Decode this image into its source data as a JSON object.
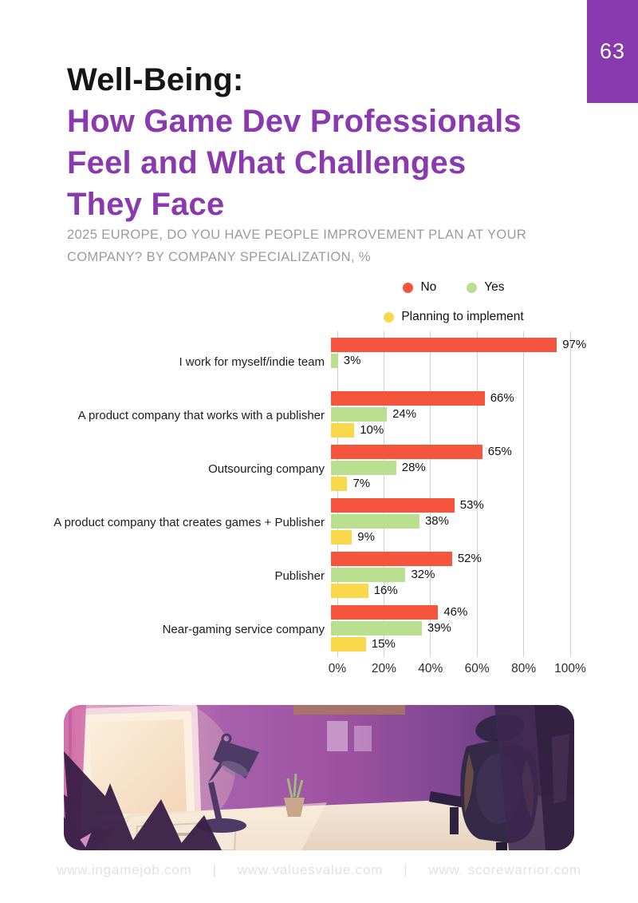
{
  "page": {
    "number": "63"
  },
  "header": {
    "title_black": "Well-Being:",
    "title_purple_lines": [
      "How Game Dev Professionals",
      "Feel and What Challenges",
      "They Face"
    ]
  },
  "subtitle_lines": [
    "2025 EUROPE, DO YOU HAVE PEOPLE IMPROVEMENT PLAN AT YOUR",
    "COMPANY? BY COMPANY SPECIALIZATION, %"
  ],
  "colors": {
    "accent_purple": "#8839AE",
    "no": "#F4553C",
    "yes": "#BADF8E",
    "planning": "#FAD84B",
    "gridline": "#CFCFCF"
  },
  "chart_data": {
    "type": "bar",
    "orientation": "horizontal",
    "title": "Do you have people improvement plan at your company? By company specialization, %",
    "legend": [
      {
        "label": "No",
        "color": "#F4553C"
      },
      {
        "label": "Yes",
        "color": "#BADF8E"
      },
      {
        "label": "Planning to implement",
        "color": "#FAD84B"
      }
    ],
    "legend_position": "top-center",
    "categories": [
      "I work for myself/indie team",
      "A product company that works with a publisher",
      "Outsourcing company",
      "A product company that creates games + Publisher",
      "Publisher",
      "Near-gaming service company"
    ],
    "series": [
      {
        "name": "No",
        "color": "#F4553C",
        "values": [
          97,
          66,
          65,
          53,
          52,
          46
        ]
      },
      {
        "name": "Yes",
        "color": "#BADF8E",
        "values": [
          3,
          24,
          28,
          38,
          32,
          39
        ]
      },
      {
        "name": "Planning to implement",
        "color": "#FAD84B",
        "values": [
          null,
          10,
          7,
          9,
          16,
          15
        ]
      }
    ],
    "xlim": [
      0,
      100
    ],
    "x_ticks": [
      "0%",
      "20%",
      "40%",
      "60%",
      "80%",
      "100%"
    ],
    "value_suffix": "%",
    "grid": "vertical"
  },
  "footer": {
    "links": [
      "www.ingamejob.com",
      "www.valuesvalue.com",
      "www. scorewarrior.com"
    ],
    "separator": "|"
  },
  "illustration": {
    "description": "purple-toned digital painting of a home-office desk with lamp, monitor and ergonomic chair"
  }
}
